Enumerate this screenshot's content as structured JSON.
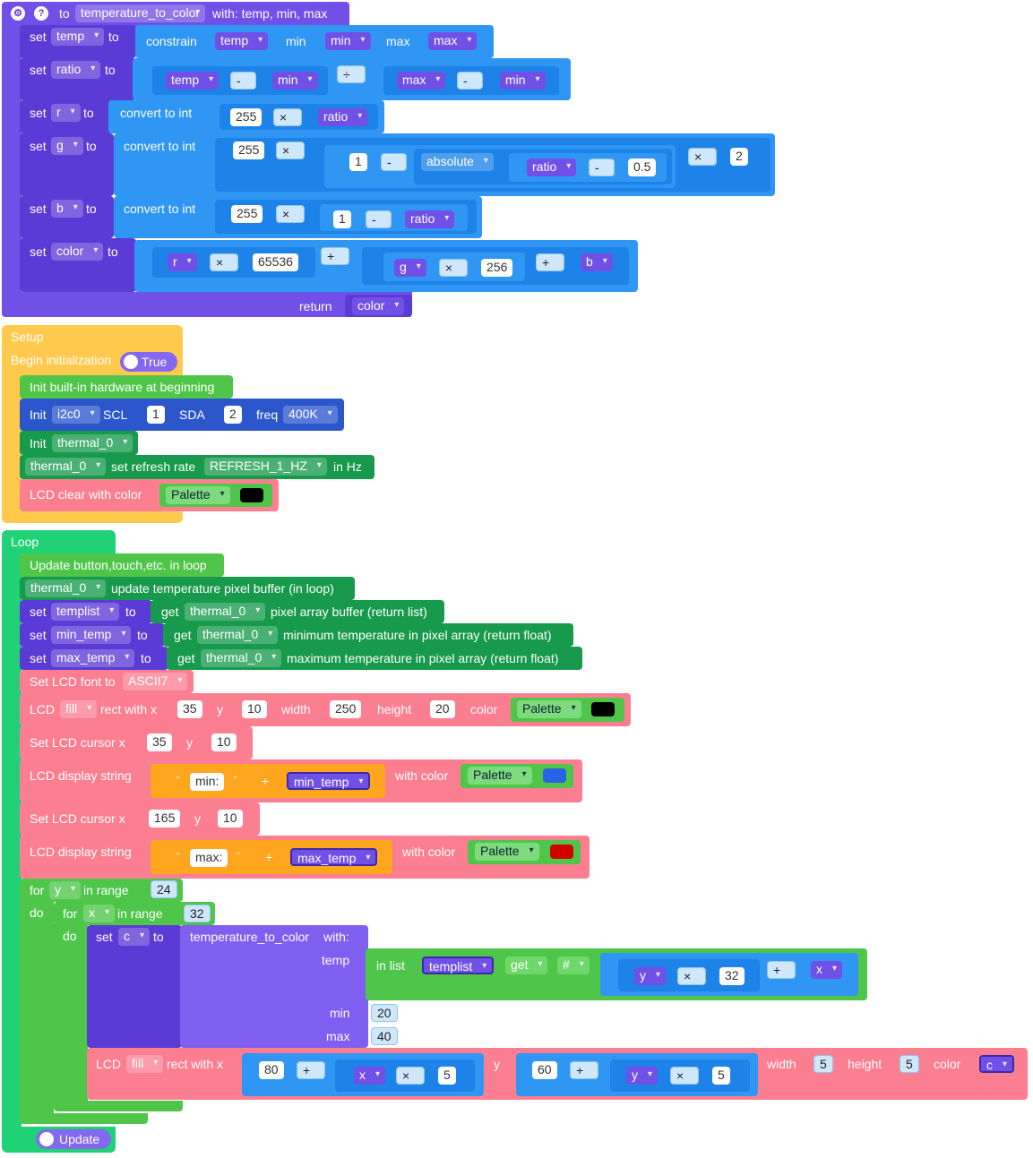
{
  "fn": {
    "to": "to",
    "name": "temperature_to_color",
    "with": "with: temp, min, max",
    "set": "set",
    "to_kw": "to",
    "temp_var": "temp",
    "ratio_var": "ratio",
    "r_var": "r",
    "g_var": "g",
    "b_var": "b",
    "color_var": "color",
    "constrain": "constrain",
    "min_label": "min",
    "max_label": "max",
    "temp": "temp",
    "min": "min",
    "max": "max",
    "minus": "-",
    "div": "÷",
    "times": "×",
    "plus": "+",
    "convert": "convert to int",
    "n255": "255",
    "n1": "1",
    "n2": "2",
    "n05": "0.5",
    "n65536": "65536",
    "n256": "256",
    "absolute": "absolute",
    "ratio": "ratio",
    "r": "r",
    "g": "g",
    "b": "b",
    "return": "return",
    "color": "color"
  },
  "setup": {
    "title": "Setup",
    "begin_init": "Begin initialization",
    "true_label": "True",
    "init_builtin": "Init built-in hardware at beginning",
    "init": "Init",
    "i2c": "i2c0",
    "scl": "SCL",
    "scl_val": "1",
    "sda": "SDA",
    "sda_val": "2",
    "freq": "freq",
    "freq_val": "400K",
    "thermal": "thermal_0",
    "set_refresh": "set refresh rate",
    "refresh_val": "REFRESH_1_HZ",
    "in_hz": "in Hz",
    "lcd_clear": "LCD clear with color",
    "palette": "Palette",
    "black": "#000000"
  },
  "loop": {
    "title": "Loop",
    "update_btn": "Update button,touch,etc. in loop",
    "thermal": "thermal_0",
    "update_buf": "update temperature pixel buffer (in loop)",
    "set": "set",
    "to_kw": "to",
    "get": "get",
    "templist": "templist",
    "pixel_array": "pixel array buffer (return list)",
    "min_temp": "min_temp",
    "min_pixel": "minimum temperature in pixel array (return float)",
    "max_temp": "max_temp",
    "max_pixel": "maximum temperature in pixel array (return float)",
    "set_font": "Set LCD font to",
    "font_val": "ASCII7",
    "lcd": "LCD",
    "fill": "fill",
    "rect_x": "rect with x",
    "y_kw": "y",
    "width_kw": "width",
    "height_kw": "height",
    "color_kw": "color",
    "r1_x": "35",
    "r1_y": "10",
    "r1_w": "250",
    "r1_h": "20",
    "palette": "Palette",
    "black": "#000000",
    "cursor": "Set LCD cursor x",
    "c1_x": "35",
    "c1_y": "10",
    "c2_x": "165",
    "c2_y": "10",
    "display_string": "LCD display string",
    "quote_open": "“",
    "quote_close": "”",
    "min_str": "min:",
    "max_str": "max:",
    "plus": "+",
    "with_color": "with color",
    "blue": "#2962e8",
    "red": "#d40000",
    "for": "for",
    "y": "y",
    "x": "x",
    "in_range": "in range",
    "y_range": "24",
    "x_range": "32",
    "do": "do",
    "c": "c",
    "ttc": "temperature_to_color",
    "with_kw": "with:",
    "temp_kw": "temp",
    "in_list": "in list",
    "get_kw": "get",
    "hash": "#",
    "times": "×",
    "n32": "32",
    "min_kw": "min",
    "max_kw": "max",
    "min_val": "20",
    "max_val": "40",
    "n80": "80",
    "n60": "60",
    "n5": "5",
    "update": "Update"
  }
}
